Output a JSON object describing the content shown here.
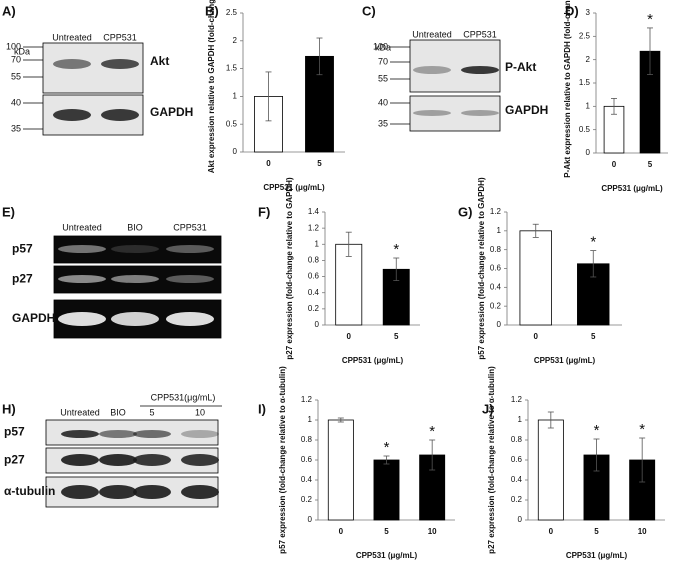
{
  "blots": [
    {
      "panel": "A)",
      "unit": "kDa",
      "lanes": [
        "Untreated",
        "CPP531"
      ],
      "rows": [
        {
          "label": "Akt",
          "markers": [
            "100",
            "70",
            "55"
          ]
        },
        {
          "label": "GAPDH",
          "markers": [
            "40",
            "35"
          ]
        }
      ]
    },
    {
      "panel": "C)",
      "unit": "kDa",
      "lanes": [
        "Untreated",
        "CPP531"
      ],
      "rows": [
        {
          "label": "P-Akt",
          "markers": [
            "100",
            "70",
            "55"
          ]
        },
        {
          "label": "GAPDH",
          "markers": [
            "40",
            "35"
          ]
        }
      ]
    },
    {
      "panel": "E)",
      "lanes": [
        "Untreated",
        "BIO",
        "CPP531"
      ],
      "rows": [
        {
          "label": "p57"
        },
        {
          "label": "p27"
        },
        {
          "label": "GAPDH"
        }
      ]
    },
    {
      "panel": "H)",
      "group": "CPP531(μg/mL)",
      "lanes": [
        "Untreated",
        "BIO",
        "5",
        "10"
      ],
      "rows": [
        {
          "label": "p57"
        },
        {
          "label": "p27"
        },
        {
          "label": "α-tubulin"
        }
      ]
    }
  ],
  "chart_data": [
    {
      "type": "bar",
      "panel": "B)",
      "ylabel": "Akt expression relative to GAPDH (fold-change)",
      "xlabel": "CPP531 (μg/mL)",
      "categories": [
        "0",
        "5"
      ],
      "values": [
        1,
        1.72
      ],
      "errors": [
        0.44,
        0.33
      ],
      "colors": [
        "#ffffff",
        "#000000"
      ],
      "ylim": [
        0,
        2.5
      ],
      "yticks": [
        0,
        0.5,
        1,
        1.5,
        2,
        2.5
      ]
    },
    {
      "type": "bar",
      "panel": "D)",
      "ylabel": "P-Akt expression relative to GAPDH (fold-change)",
      "xlabel": "CPP531 (μg/mL)",
      "categories": [
        "0",
        "5"
      ],
      "values": [
        1,
        2.18
      ],
      "errors": [
        0.17,
        0.5
      ],
      "colors": [
        "#ffffff",
        "#000000"
      ],
      "ylim": [
        0,
        3
      ],
      "yticks": [
        0,
        0.5,
        1,
        1.5,
        2,
        2.5,
        3
      ],
      "annotations": [
        {
          "category": "5",
          "text": "*"
        }
      ]
    },
    {
      "type": "bar",
      "panel": "F)",
      "ylabel": "p27 expression (fold-change relative to GAPDH)",
      "xlabel": "CPP531 (μg/mL)",
      "categories": [
        "0",
        "5"
      ],
      "values": [
        1,
        0.69
      ],
      "errors": [
        0.15,
        0.14
      ],
      "colors": [
        "#ffffff",
        "#000000"
      ],
      "ylim": [
        0,
        1.4
      ],
      "yticks": [
        0,
        0.2,
        0.4,
        0.6,
        0.8,
        1,
        1.2,
        1.4
      ],
      "annotations": [
        {
          "category": "5",
          "text": "*"
        }
      ]
    },
    {
      "type": "bar",
      "panel": "G)",
      "ylabel": "p57 expression (fold-change relative to GAPDH)",
      "xlabel": "CPP531 (μg/mL)",
      "categories": [
        "0",
        "5"
      ],
      "values": [
        1,
        0.65
      ],
      "errors": [
        0.07,
        0.14
      ],
      "colors": [
        "#ffffff",
        "#000000"
      ],
      "ylim": [
        0,
        1.2
      ],
      "yticks": [
        0,
        0.2,
        0.4,
        0.6,
        0.8,
        1,
        1.2
      ],
      "annotations": [
        {
          "category": "5",
          "text": "*"
        }
      ]
    },
    {
      "type": "bar",
      "panel": "I)",
      "ylabel": "p57 expression (fold-change relative to α-tubulin)",
      "xlabel": "CPP531 (μg/mL)",
      "categories": [
        "0",
        "5",
        "10"
      ],
      "values": [
        1,
        0.6,
        0.65
      ],
      "errors": [
        0.02,
        0.04,
        0.15
      ],
      "colors": [
        "#ffffff",
        "#000000",
        "#000000"
      ],
      "ylim": [
        0,
        1.2
      ],
      "yticks": [
        0,
        0.2,
        0.4,
        0.6,
        0.8,
        1,
        1.2
      ],
      "annotations": [
        {
          "category": "5",
          "text": "*"
        },
        {
          "category": "10",
          "text": "*"
        }
      ]
    },
    {
      "type": "bar",
      "panel": "J)",
      "ylabel": "p27 expression (fold-change relative to α-tubulin)",
      "xlabel": "CPP531 (μg/mL)",
      "categories": [
        "0",
        "5",
        "10"
      ],
      "values": [
        1,
        0.65,
        0.6
      ],
      "errors": [
        0.08,
        0.16,
        0.22
      ],
      "colors": [
        "#ffffff",
        "#000000",
        "#000000"
      ],
      "ylim": [
        0,
        1.2
      ],
      "yticks": [
        0,
        0.2,
        0.4,
        0.6,
        0.8,
        1,
        1.2
      ],
      "annotations": [
        {
          "category": "5",
          "text": "*"
        },
        {
          "category": "10",
          "text": "*"
        }
      ]
    }
  ]
}
